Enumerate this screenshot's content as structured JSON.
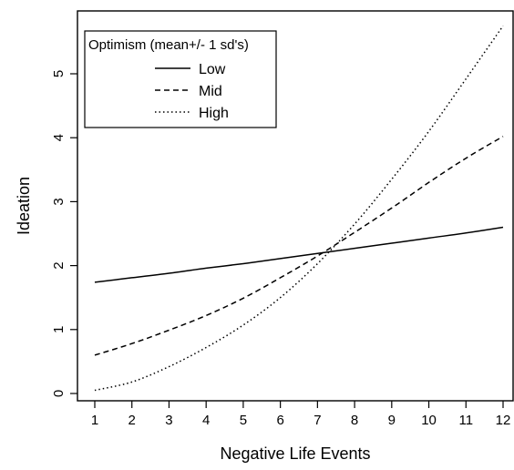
{
  "chart_data": {
    "type": "line",
    "xlabel": "Negative Life Events",
    "ylabel": "Ideation",
    "xlim": [
      1,
      12
    ],
    "ylim": [
      0,
      5.8
    ],
    "x_ticks": [
      1,
      2,
      3,
      4,
      5,
      6,
      7,
      8,
      9,
      10,
      11,
      12
    ],
    "y_ticks": [
      0,
      1,
      2,
      3,
      4,
      5
    ],
    "grid": false,
    "legend": {
      "title": "Optimism (mean+/- 1 sd's)",
      "position": "top-left",
      "entries": [
        "Low",
        "Mid",
        "High"
      ]
    },
    "series": [
      {
        "name": "Low",
        "style": "solid",
        "x": [
          1,
          2,
          3,
          4,
          5,
          6,
          7,
          8,
          9,
          10,
          11,
          12
        ],
        "y": [
          1.74,
          1.81,
          1.88,
          1.96,
          2.03,
          2.11,
          2.19,
          2.27,
          2.35,
          2.43,
          2.51,
          2.6
        ]
      },
      {
        "name": "Mid",
        "style": "dashed",
        "x": [
          1,
          2,
          3,
          4,
          5,
          6,
          7,
          8,
          9,
          10,
          11,
          12
        ],
        "y": [
          0.6,
          0.78,
          0.99,
          1.22,
          1.49,
          1.81,
          2.15,
          2.52,
          2.9,
          3.3,
          3.68,
          4.02
        ]
      },
      {
        "name": "High",
        "style": "dotted",
        "x": [
          1,
          2,
          3,
          4,
          5,
          6,
          7,
          8,
          9,
          10,
          11,
          12
        ],
        "y": [
          0.05,
          0.18,
          0.42,
          0.72,
          1.07,
          1.5,
          2.03,
          2.65,
          3.35,
          4.1,
          4.92,
          5.75
        ]
      }
    ]
  }
}
